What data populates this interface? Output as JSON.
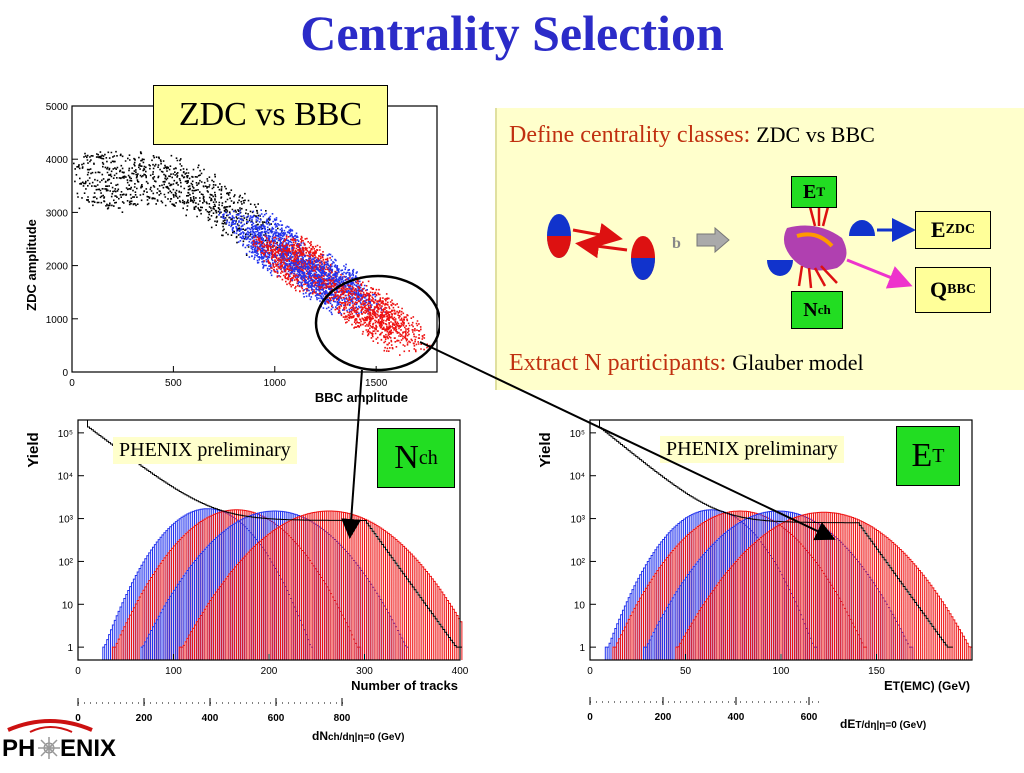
{
  "title": "Centrality Selection",
  "scatter_plot": {
    "label_box": "ZDC vs BBC",
    "ylabel": "ZDC amplitude",
    "xlabel": "BBC amplitude",
    "x_ticks": [
      "0",
      "500",
      "1000",
      "1500"
    ],
    "y_ticks": [
      "0",
      "1000",
      "2000",
      "3000",
      "4000",
      "5000"
    ]
  },
  "info_box": {
    "define_text": "Define centrality classes:",
    "define_sub": "ZDC vs BBC",
    "extract_text": "Extract N participants:",
    "extract_sub": "Glauber model",
    "b_label": "b",
    "et_label": "E",
    "et_sub": "T",
    "nch_label": "N",
    "nch_sub": "ch",
    "ezdc_label": "E",
    "ezdc_sub": "ZDC",
    "qbbc_label": "Q",
    "qbbc_sub": "BBC"
  },
  "nch_plot": {
    "ylabel": "Yield",
    "prelim": "PHENIX preliminary",
    "badge_main": "N",
    "badge_sub": "ch",
    "xlabel": "Number of tracks",
    "x_ticks": [
      "0",
      "100",
      "200",
      "300",
      "400"
    ],
    "y_ticks": [
      "1",
      "10",
      "10²",
      "10³",
      "10⁴",
      "10⁵"
    ],
    "x2_ticks": [
      "0",
      "200",
      "400",
      "600",
      "800"
    ],
    "x2_label": "dN",
    "x2_label_tail": "ch/dη|η=0 (GeV)"
  },
  "et_plot": {
    "ylabel": "Yield",
    "prelim": "PHENIX preliminary",
    "badge_main": "E",
    "badge_sub": "T",
    "xlabel": "E",
    "xlabel_tail": "T(EMC) (GeV)",
    "x_ticks": [
      "0",
      "50",
      "100",
      "150"
    ],
    "y_ticks": [
      "1",
      "10",
      "10²",
      "10³",
      "10⁴",
      "10⁵"
    ],
    "x2_ticks": [
      "0",
      "200",
      "400",
      "600"
    ],
    "x2_label": "dE",
    "x2_label_tail": "T/dη|η=0 (GeV)"
  },
  "logo": {
    "left": "PH",
    "right": "ENIX"
  },
  "colors": {
    "title": "#2b2bc8",
    "red_text": "#c03010",
    "badge_green": "#22dd22",
    "label_yellow": "#ffff99",
    "info_bg": "#ffffcc"
  }
}
